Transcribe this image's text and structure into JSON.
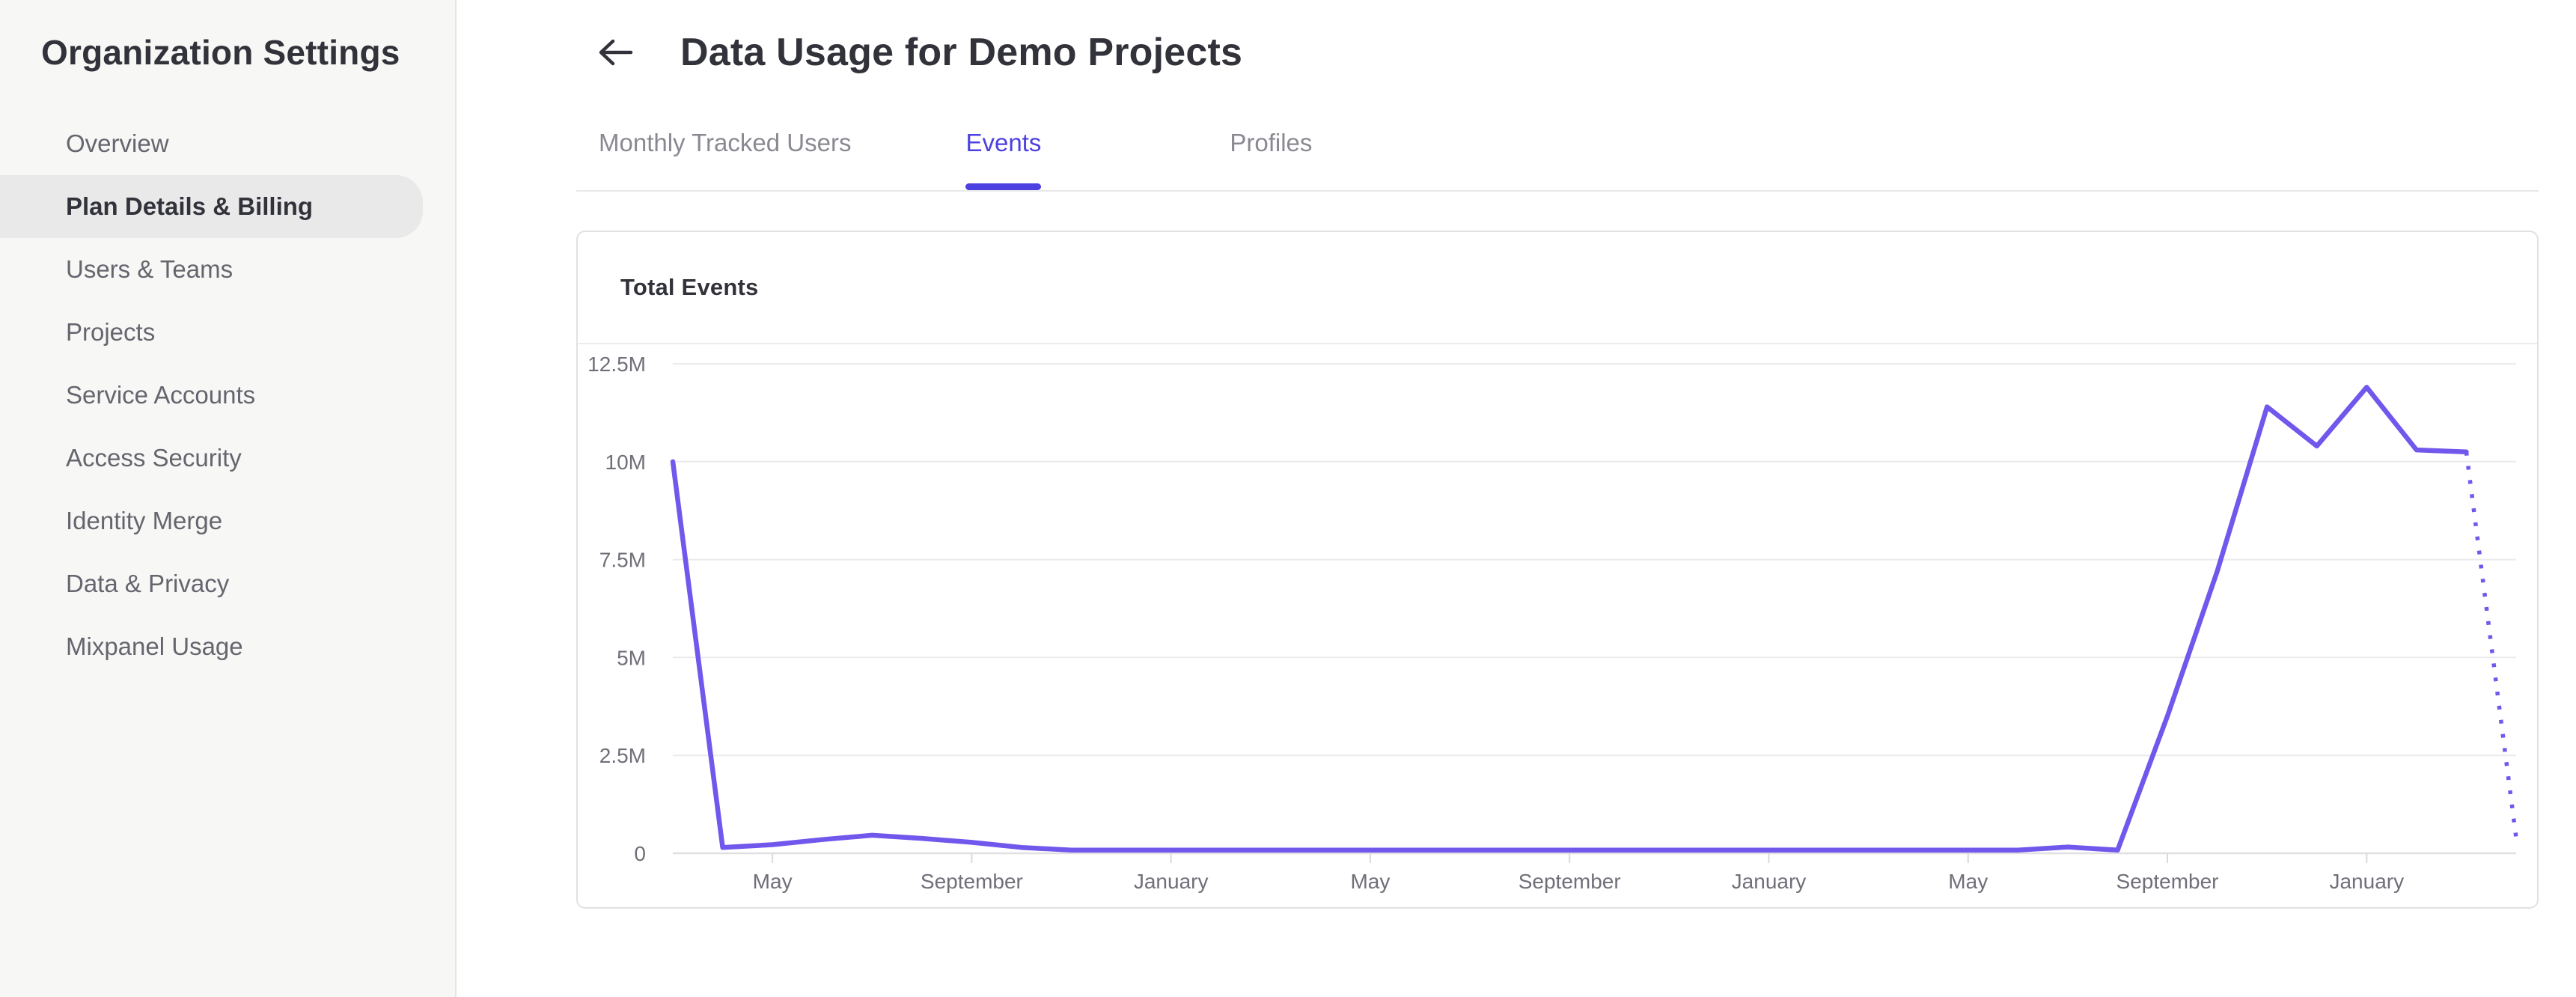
{
  "sidebar": {
    "title": "Organization Settings",
    "items": [
      {
        "label": "Overview",
        "selected": false
      },
      {
        "label": "Plan Details & Billing",
        "selected": true
      },
      {
        "label": "Users & Teams",
        "selected": false
      },
      {
        "label": "Projects",
        "selected": false
      },
      {
        "label": "Service Accounts",
        "selected": false
      },
      {
        "label": "Access Security",
        "selected": false
      },
      {
        "label": "Identity Merge",
        "selected": false
      },
      {
        "label": "Data & Privacy",
        "selected": false
      },
      {
        "label": "Mixpanel Usage",
        "selected": false
      }
    ]
  },
  "header": {
    "title": "Data Usage for Demo Projects"
  },
  "tabs": [
    {
      "label": "Monthly Tracked Users",
      "active": false
    },
    {
      "label": "Events",
      "active": true
    },
    {
      "label": "Profiles",
      "active": false
    }
  ],
  "card": {
    "title": "Total Events"
  },
  "colors": {
    "accent_tab": "#4c40e0",
    "chart_line": "#7257ec",
    "grid_line": "#ebebee",
    "axis_line": "#e0e0e3",
    "tick_mark": "#d9d9db",
    "axis_text": "#706f78",
    "sidebar_bg": "#f7f7f6",
    "selected_pill": "#e9e9ea",
    "text_dark": "#32323b",
    "text_gray": "#66656e",
    "tab_inactive": "#8a8992"
  },
  "chart_data": {
    "type": "line",
    "title": "Total Events",
    "unit": "events, millions",
    "grid": "horizontal",
    "legend": "none",
    "ylim_millions": [
      0,
      12.5
    ],
    "y_tick_labels": [
      "0",
      "2.5M",
      "5M",
      "7.5M",
      "10M",
      "12.5M"
    ],
    "x_tick_labels": [
      "May",
      "September",
      "January",
      "May",
      "September",
      "January",
      "May",
      "September",
      "January"
    ],
    "x_tick_point_indices": [
      2,
      6,
      10,
      14,
      18,
      22,
      26,
      30,
      34
    ],
    "values_millions": [
      10.0,
      0.15,
      0.22,
      0.35,
      0.46,
      0.38,
      0.28,
      0.15,
      0.08,
      0.08,
      0.08,
      0.08,
      0.08,
      0.08,
      0.08,
      0.08,
      0.08,
      0.08,
      0.08,
      0.08,
      0.08,
      0.08,
      0.08,
      0.08,
      0.08,
      0.08,
      0.08,
      0.08,
      0.16,
      0.08,
      3.5,
      7.2,
      11.4,
      10.4,
      11.9,
      10.3,
      10.25,
      0.4
    ],
    "last_segment_style": "dotted-projection"
  }
}
